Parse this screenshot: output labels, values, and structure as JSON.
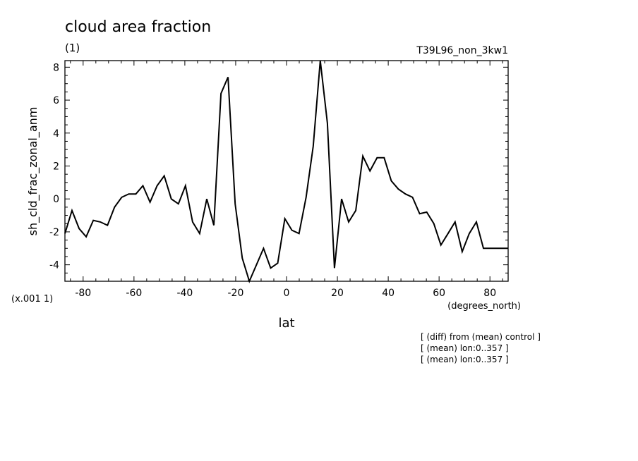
{
  "chart_data": {
    "type": "line",
    "title": "cloud area fraction",
    "units": "(1)",
    "run_label": "T39L96_non_3kw1",
    "ylabel": "sh_cld_frac_zonal_anm",
    "xlabel": "lat",
    "xunits": "(degrees_north)",
    "yscale_note": "(x.001 1)",
    "xlim": [
      -87.16,
      87.16
    ],
    "ylim": [
      -5,
      8.4
    ],
    "xticks": [
      -80,
      -60,
      -40,
      -20,
      0,
      20,
      40,
      60,
      80
    ],
    "xtick_labels": [
      "-80",
      "-60",
      "-40",
      "-20",
      "0",
      "20",
      "40",
      "60",
      "80"
    ],
    "yticks": [
      -4,
      -2,
      0,
      2,
      4,
      6,
      8
    ],
    "ytick_labels": [
      "-4",
      "-2",
      "0",
      "2",
      "4",
      "6",
      "8"
    ],
    "grid": false,
    "line_color": "#000000",
    "series": [
      {
        "x": [
          -87.16,
          -84.38,
          -81.59,
          -78.8,
          -76.01,
          -73.22,
          -70.43,
          -67.64,
          -64.85,
          -62.06,
          -59.27,
          -56.48,
          -53.69,
          -50.9,
          -48.11,
          -45.32,
          -42.53,
          -39.74,
          -36.95,
          -34.16,
          -31.37,
          -28.58,
          -25.79,
          -23.0,
          -20.2,
          -17.41,
          -14.62,
          -11.83,
          -9.04,
          -6.25,
          -3.46,
          -0.67,
          2.12,
          4.91,
          7.7,
          10.49,
          13.28,
          16.07,
          18.86,
          21.65,
          24.44,
          27.23,
          30.02,
          32.81,
          35.6,
          38.39,
          41.18,
          43.97,
          46.76,
          49.55,
          52.34,
          55.13,
          57.92,
          60.71,
          63.5,
          66.29,
          69.08,
          71.87,
          74.66,
          77.45,
          80.24,
          83.03,
          85.82,
          87.16
        ],
        "values": [
          -2.1,
          -0.7,
          -1.8,
          -2.3,
          -1.3,
          -1.4,
          -1.6,
          -0.5,
          0.1,
          0.3,
          0.3,
          0.8,
          -0.2,
          0.8,
          1.4,
          0.0,
          -0.3,
          0.8,
          -1.4,
          -2.1,
          0.0,
          -1.6,
          6.4,
          7.4,
          -0.3,
          -3.6,
          -5.0,
          -4.0,
          -3.0,
          -4.2,
          -3.9,
          -1.2,
          -1.9,
          -2.1,
          0.1,
          3.2,
          8.4,
          4.6,
          -4.2,
          0.0,
          -1.4,
          -0.7,
          2.6,
          1.7,
          2.5,
          2.5,
          1.1,
          0.6,
          0.3,
          0.1,
          -0.9,
          -0.8,
          -1.5,
          -2.8,
          -2.1,
          -1.4,
          -3.2,
          -2.1,
          -1.4,
          -3.0,
          -3.0,
          -3.0,
          -3.0,
          -3.0
        ]
      }
    ]
  },
  "annotations": [
    "[ (diff) from (mean) control ]",
    "[ (mean) lon:0..357 ]",
    "[ (mean) lon:0..357 ]"
  ]
}
